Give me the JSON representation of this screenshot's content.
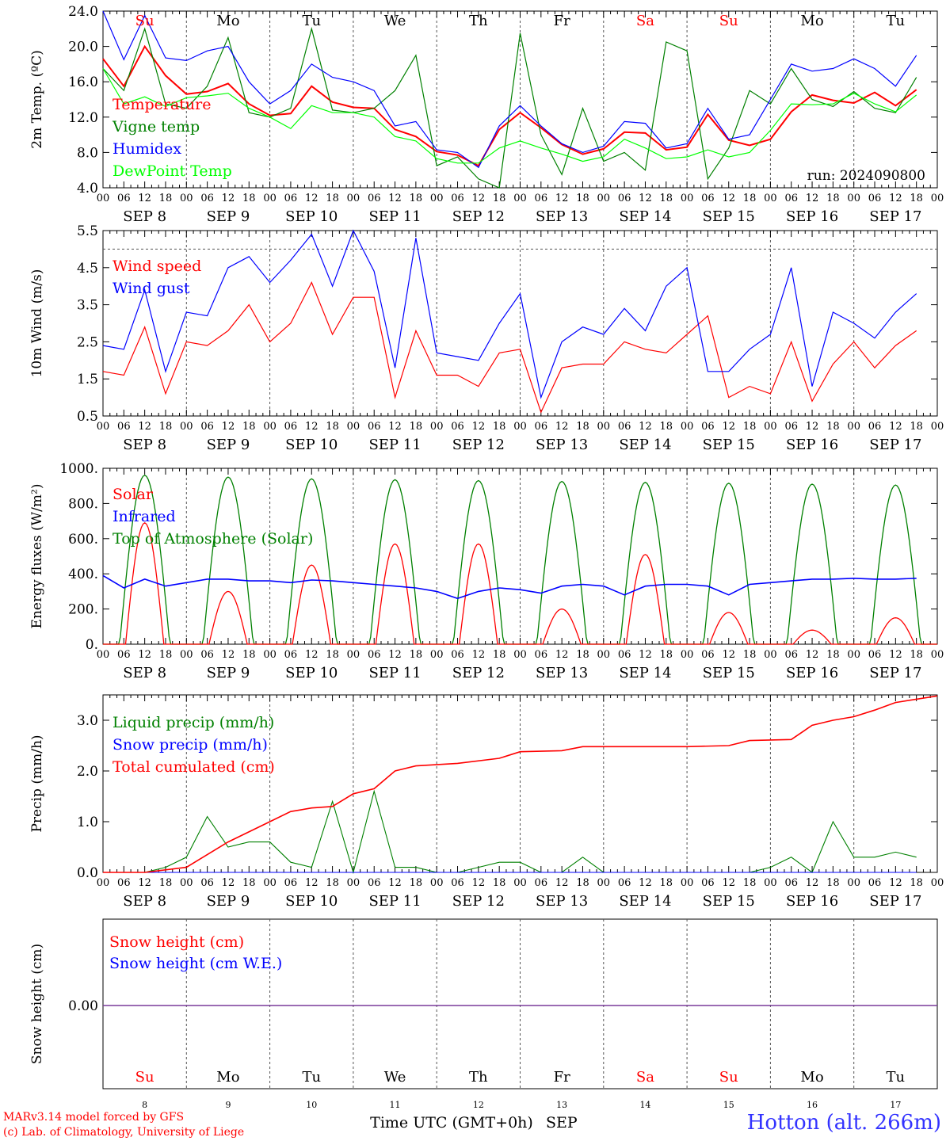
{
  "chart_data": [
    {
      "type": "line",
      "ylabel": "2m Temp. (ºC)",
      "ylim": [
        4,
        24
      ],
      "yticks": [
        "24.0",
        "20.0",
        "16.0",
        "12.0",
        "8.0",
        "4.0"
      ],
      "ytick_values": [
        24,
        20,
        16,
        12,
        8,
        4
      ],
      "annotation": "run: 2024090800",
      "series": [
        {
          "name": "Temperature",
          "color": "#ff0000",
          "x": [
            0,
            6,
            12,
            18,
            24,
            30,
            36,
            42,
            48,
            54,
            60,
            66,
            72,
            78,
            84,
            90,
            96,
            102,
            108,
            114,
            120,
            126,
            132,
            138,
            144,
            150,
            156,
            162,
            168,
            174,
            180,
            186,
            192,
            198,
            204,
            210,
            216,
            222,
            228,
            234
          ],
          "values": [
            18.6,
            15.5,
            20.0,
            16.7,
            14.6,
            14.9,
            15.8,
            13.5,
            12.2,
            12.4,
            15.5,
            13.7,
            13.1,
            13.0,
            10.6,
            9.8,
            8.1,
            7.7,
            6.5,
            10.6,
            12.5,
            10.8,
            8.9,
            7.8,
            8.4,
            10.3,
            10.2,
            8.3,
            8.6,
            12.3,
            9.4,
            8.8,
            9.5,
            12.6,
            14.5,
            13.9,
            13.6,
            14.8,
            13.3,
            15.1
          ]
        },
        {
          "name": "Vigne temp",
          "color": "#008000",
          "x": [
            0,
            6,
            12,
            18,
            24,
            30,
            36,
            42,
            48,
            54,
            60,
            66,
            72,
            78,
            84,
            90,
            96,
            102,
            108,
            114,
            120,
            126,
            132,
            138,
            144,
            150,
            156,
            162,
            168,
            174,
            180,
            186,
            192,
            198,
            204,
            210,
            216,
            222,
            228,
            234
          ],
          "values": [
            17.5,
            15.0,
            22.0,
            13.5,
            13.0,
            15.5,
            21.0,
            12.5,
            12.0,
            13.0,
            22.0,
            12.8,
            12.5,
            13.0,
            15.0,
            19.0,
            6.5,
            7.5,
            5.0,
            4.0,
            21.5,
            10.0,
            5.5,
            13.0,
            7.0,
            8.0,
            6.0,
            20.5,
            19.5,
            5.0,
            8.5,
            15.0,
            13.5,
            17.5,
            14.0,
            13.2,
            14.9,
            13.0,
            12.5,
            16.5
          ]
        },
        {
          "name": "Humidex",
          "color": "#0000ff",
          "x": [
            0,
            6,
            12,
            18,
            24,
            30,
            36,
            42,
            48,
            54,
            60,
            66,
            72,
            78,
            84,
            90,
            96,
            102,
            108,
            114,
            120,
            126,
            132,
            138,
            144,
            150,
            156,
            162,
            168,
            174,
            180,
            186,
            192,
            198,
            204,
            210,
            216,
            222,
            228,
            234
          ],
          "values": [
            24.0,
            18.5,
            23.5,
            18.7,
            18.4,
            19.5,
            20.0,
            16.0,
            13.5,
            15.0,
            18.0,
            16.5,
            16.0,
            15.0,
            11.0,
            11.5,
            8.3,
            8.0,
            6.3,
            11.0,
            13.3,
            11.0,
            9.0,
            8.0,
            8.7,
            11.5,
            11.3,
            8.5,
            9.0,
            13.0,
            9.5,
            10.0,
            14.0,
            18.0,
            17.2,
            17.5,
            18.6,
            17.5,
            15.5,
            19.0
          ]
        },
        {
          "name": "DewPoint Temp",
          "color": "#00ff00",
          "x": [
            0,
            6,
            12,
            18,
            24,
            30,
            36,
            42,
            48,
            54,
            60,
            66,
            72,
            78,
            84,
            90,
            96,
            102,
            108,
            114,
            120,
            126,
            132,
            138,
            144,
            150,
            156,
            162,
            168,
            174,
            180,
            186,
            192,
            198,
            204,
            210,
            216,
            222,
            228,
            234
          ],
          "values": [
            17.5,
            13.5,
            14.3,
            13.2,
            14.2,
            14.4,
            14.7,
            13.0,
            12.0,
            10.7,
            13.3,
            12.5,
            12.5,
            12.0,
            9.8,
            9.3,
            7.3,
            6.8,
            6.8,
            8.5,
            9.3,
            8.5,
            7.8,
            7.0,
            7.5,
            9.5,
            8.5,
            7.3,
            7.5,
            8.3,
            7.5,
            8.0,
            10.5,
            13.5,
            13.4,
            13.5,
            14.7,
            13.5,
            12.6,
            14.5
          ]
        }
      ]
    },
    {
      "type": "line",
      "ylabel": "10m Wind (m/s)",
      "ylim": [
        0.5,
        5.5
      ],
      "yticks": [
        "5.5",
        "4.5",
        "3.5",
        "2.5",
        "1.5",
        "0.5"
      ],
      "ytick_values": [
        5.5,
        4.5,
        3.5,
        2.5,
        1.5,
        0.5
      ],
      "reference_line": 5.0,
      "series": [
        {
          "name": "Wind speed",
          "color": "#ff0000",
          "x": [
            0,
            6,
            12,
            18,
            24,
            30,
            36,
            42,
            48,
            54,
            60,
            66,
            72,
            78,
            84,
            90,
            96,
            102,
            108,
            114,
            120,
            126,
            132,
            138,
            144,
            150,
            156,
            162,
            168,
            174,
            180,
            186,
            192,
            198,
            204,
            210,
            216,
            222,
            228,
            234
          ],
          "values": [
            1.7,
            1.6,
            2.9,
            1.1,
            2.5,
            2.4,
            2.8,
            3.5,
            2.5,
            3.0,
            4.1,
            2.7,
            3.7,
            3.7,
            1.0,
            2.8,
            1.6,
            1.6,
            1.3,
            2.2,
            2.3,
            0.6,
            1.8,
            1.9,
            1.9,
            2.5,
            2.3,
            2.2,
            2.7,
            3.2,
            1.0,
            1.3,
            1.1,
            2.5,
            0.9,
            1.9,
            2.5,
            1.8,
            2.4,
            2.8
          ]
        },
        {
          "name": "Wind gust",
          "color": "#0000ff",
          "x": [
            0,
            6,
            12,
            18,
            24,
            30,
            36,
            42,
            48,
            54,
            60,
            66,
            72,
            78,
            84,
            90,
            96,
            102,
            108,
            114,
            120,
            126,
            132,
            138,
            144,
            150,
            156,
            162,
            168,
            174,
            180,
            186,
            192,
            198,
            204,
            210,
            216,
            222,
            228,
            234
          ],
          "values": [
            2.4,
            2.3,
            3.9,
            1.7,
            3.3,
            3.2,
            4.5,
            4.8,
            4.1,
            4.7,
            5.4,
            4.0,
            5.5,
            4.4,
            1.8,
            5.3,
            2.2,
            2.1,
            2.0,
            3.0,
            3.8,
            1.0,
            2.5,
            2.9,
            2.7,
            3.4,
            2.8,
            4.0,
            4.5,
            1.7,
            1.7,
            2.3,
            2.7,
            4.5,
            1.3,
            3.3,
            3.0,
            2.6,
            3.3,
            3.8
          ]
        }
      ]
    },
    {
      "type": "line",
      "ylabel": "Energy fluxes (W/m²)",
      "ylim": [
        0,
        1000
      ],
      "yticks": [
        "1000.",
        "800.",
        "600.",
        "400.",
        "200.",
        "0."
      ],
      "ytick_values": [
        1000,
        800,
        600,
        400,
        200,
        0
      ],
      "series": [
        {
          "name": "Solar",
          "color": "#ff0000",
          "daily_peaks": [
            690,
            300,
            450,
            570,
            570,
            200,
            510,
            180,
            80,
            150
          ]
        },
        {
          "name": "Infrared",
          "color": "#0000ff",
          "x": [
            0,
            6,
            12,
            18,
            24,
            30,
            36,
            42,
            48,
            54,
            60,
            66,
            72,
            78,
            84,
            90,
            96,
            102,
            108,
            114,
            120,
            126,
            132,
            138,
            144,
            150,
            156,
            162,
            168,
            174,
            180,
            186,
            192,
            198,
            204,
            210,
            216,
            222,
            228,
            234
          ],
          "values": [
            390,
            320,
            370,
            330,
            350,
            370,
            370,
            360,
            360,
            350,
            365,
            360,
            350,
            340,
            330,
            320,
            300,
            260,
            300,
            320,
            310,
            290,
            330,
            340,
            330,
            280,
            330,
            340,
            340,
            330,
            280,
            340,
            350,
            360,
            370,
            370,
            375,
            370,
            370,
            375
          ]
        },
        {
          "name": "Top of Atmosphere (Solar)",
          "color": "#008000",
          "daily_peaks": [
            960,
            950,
            940,
            935,
            930,
            925,
            920,
            915,
            910,
            905
          ]
        }
      ]
    },
    {
      "type": "line",
      "ylabel": "Precip (mm/h)",
      "ylim": [
        0,
        3.5
      ],
      "yticks": [
        "3.0",
        "2.0",
        "1.0",
        "0.0"
      ],
      "ytick_values": [
        3,
        2,
        1,
        0
      ],
      "series": [
        {
          "name": "Liquid precip (mm/h)",
          "color": "#008000",
          "x": [
            0,
            6,
            12,
            18,
            24,
            30,
            36,
            42,
            48,
            54,
            60,
            66,
            72,
            78,
            84,
            90,
            96,
            102,
            108,
            114,
            120,
            126,
            132,
            138,
            144,
            150,
            156,
            162,
            168,
            174,
            180,
            186,
            192,
            198,
            204,
            210,
            216,
            222,
            228,
            234
          ],
          "values": [
            0,
            0,
            0,
            0.1,
            0.3,
            1.1,
            0.5,
            0.6,
            0.6,
            0.2,
            0.1,
            1.4,
            0,
            1.6,
            0.1,
            0.1,
            0,
            0,
            0.1,
            0.2,
            0.2,
            0,
            0,
            0.3,
            0,
            0,
            0,
            0,
            0,
            0,
            0,
            0,
            0.1,
            0.3,
            0,
            1.0,
            0.3,
            0.3,
            0.4,
            0.3
          ]
        },
        {
          "name": "Snow precip (mm/h)",
          "color": "#0000ff",
          "x": [
            0,
            234
          ],
          "values": [
            0,
            0
          ]
        },
        {
          "name": "Total cumulated (cm)",
          "color": "#ff0000",
          "x": [
            0,
            12,
            24,
            30,
            36,
            48,
            54,
            60,
            66,
            72,
            78,
            84,
            90,
            102,
            114,
            120,
            132,
            138,
            168,
            180,
            186,
            198,
            204,
            210,
            216,
            222,
            228,
            240
          ],
          "values": [
            0,
            0,
            0.1,
            0.35,
            0.6,
            1.0,
            1.2,
            1.27,
            1.3,
            1.55,
            1.65,
            2.0,
            2.1,
            2.15,
            2.25,
            2.38,
            2.4,
            2.48,
            2.48,
            2.5,
            2.6,
            2.62,
            2.9,
            3.0,
            3.07,
            3.2,
            3.35,
            3.48
          ]
        }
      ]
    },
    {
      "type": "line",
      "ylabel": "Snow height (cm)",
      "yticks": [
        "0.00"
      ],
      "series": [
        {
          "name": "Snow height (cm)",
          "color": "#ff0000",
          "values": [
            0
          ]
        },
        {
          "name": "Snow height (cm W.E.)",
          "color": "#0000ff",
          "values": [
            0
          ]
        }
      ]
    }
  ],
  "axes": {
    "hour_ticks": [
      "00",
      "06",
      "12",
      "18"
    ],
    "hour_end": "00",
    "date_labels": [
      "SEP  8",
      "SEP  9",
      "SEP 10",
      "SEP 11",
      "SEP 12",
      "SEP 13",
      "SEP 14",
      "SEP 15",
      "SEP 16",
      "SEP 17"
    ],
    "weekdays": [
      "Su",
      "Mo",
      "Tu",
      "We",
      "Th",
      "Fr",
      "Sa",
      "Su",
      "Mo",
      "Tu"
    ],
    "weekday_colors": [
      "#ff0000",
      "#000000",
      "#000000",
      "#000000",
      "#000000",
      "#000000",
      "#ff0000",
      "#ff0000",
      "#000000",
      "#000000"
    ],
    "day_numbers": [
      "8",
      "9",
      "10",
      "11",
      "12",
      "13",
      "14",
      "15",
      "16",
      "17"
    ],
    "xlabel": "Time UTC (GMT+0h)",
    "month": "SEP"
  },
  "footer": {
    "model": "MARv3.14 model forced by GFS",
    "copyright": "(c) Lab. of Climatology, University of Liege",
    "station": "Hotton (alt. 266m)"
  }
}
